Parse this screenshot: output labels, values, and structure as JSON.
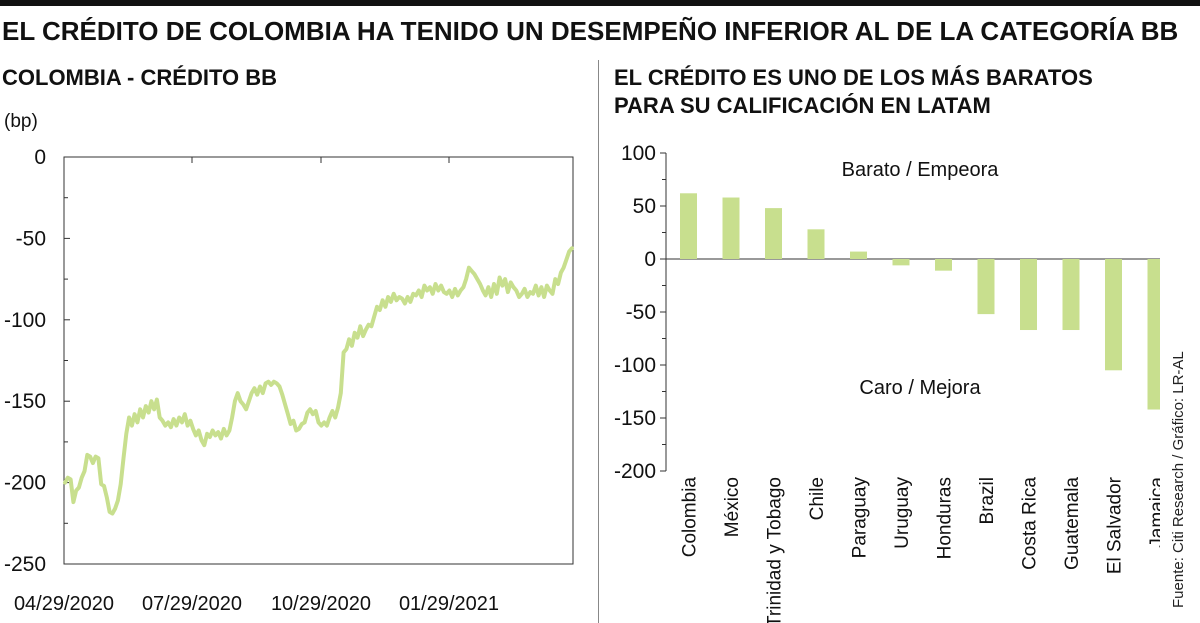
{
  "title": "EL CRÉDITO DE COLOMBIA HA TENIDO UN DESEMPEÑO INFERIOR AL DE LA CATEGORÍA BB",
  "source": "Fuente: Citi Research / Gráfico: LR-AL",
  "colors": {
    "series": "#c8df8e",
    "text": "#111111",
    "axis": "#333333"
  },
  "chart_data": [
    {
      "type": "line",
      "title": "COLOMBIA - CRÉDITO BB",
      "unit_label": "(bp)",
      "ylim": [
        -250,
        0
      ],
      "yticks": [
        0,
        -50,
        -100,
        -150,
        -200,
        -250
      ],
      "x_tick_labels": [
        "04/29/2020",
        "07/29/2020",
        "10/29/2020",
        "01/29/2021"
      ],
      "grid": false,
      "series": [
        {
          "values": [
            -200,
            -197,
            -198,
            -212,
            -205,
            -203,
            -197,
            -193,
            -183,
            -184,
            -188,
            -184,
            -185,
            -201,
            -202,
            -209,
            -218,
            -219,
            -216,
            -211,
            -201,
            -185,
            -170,
            -160,
            -165,
            -158,
            -163,
            -155,
            -160,
            -153,
            -157,
            -150,
            -155,
            -149,
            -160,
            -162,
            -165,
            -163,
            -166,
            -161,
            -165,
            -160,
            -163,
            -158,
            -165,
            -162,
            -167,
            -171,
            -168,
            -174,
            -177,
            -170,
            -172,
            -168,
            -171,
            -169,
            -173,
            -167,
            -171,
            -168,
            -160,
            -150,
            -145,
            -150,
            -152,
            -155,
            -150,
            -145,
            -142,
            -146,
            -141,
            -145,
            -139,
            -138,
            -140,
            -138,
            -139,
            -141,
            -146,
            -152,
            -158,
            -164,
            -162,
            -168,
            -167,
            -164,
            -163,
            -157,
            -155,
            -158,
            -156,
            -163,
            -165,
            -163,
            -165,
            -160,
            -156,
            -160,
            -154,
            -145,
            -120,
            -118,
            -112,
            -116,
            -108,
            -111,
            -104,
            -110,
            -106,
            -103,
            -104,
            -98,
            -92,
            -94,
            -88,
            -92,
            -86,
            -89,
            -84,
            -88,
            -86,
            -87,
            -90,
            -86,
            -89,
            -84,
            -85,
            -82,
            -86,
            -79,
            -82,
            -80,
            -84,
            -78,
            -82,
            -79,
            -83,
            -84,
            -82,
            -86,
            -81,
            -85,
            -82,
            -80,
            -75,
            -68,
            -70,
            -72,
            -75,
            -78,
            -82,
            -85,
            -80,
            -86,
            -78,
            -84,
            -74,
            -79,
            -75,
            -83,
            -77,
            -80,
            -82,
            -86,
            -84,
            -81,
            -86,
            -83,
            -84,
            -79,
            -85,
            -80,
            -86,
            -79,
            -82,
            -84,
            -75,
            -78,
            -71,
            -68,
            -63,
            -58,
            -56
          ]
        }
      ]
    },
    {
      "type": "bar",
      "title": "EL CRÉDITO ES UNO DE LOS MÁS BARATOS PARA SU CALIFICACIÓN EN LATAM",
      "title_lines": [
        "EL CRÉDITO ES UNO DE LOS MÁS BARATOS",
        "PARA SU CALIFICACIÓN EN LATAM"
      ],
      "ylim": [
        -200,
        100
      ],
      "yticks": [
        100,
        50,
        0,
        -50,
        -100,
        -150,
        -200
      ],
      "categories": [
        "Colombia",
        "México",
        "Trinidad y Tobago",
        "Chile",
        "Paraguay",
        "Uruguay",
        "Honduras",
        "Brazil",
        "Costa Rica",
        "Guatemala",
        "El Salvador",
        "Jamaica"
      ],
      "values": [
        62,
        58,
        48,
        28,
        7,
        -6,
        -11,
        -52,
        -67,
        -67,
        -105,
        -142
      ],
      "annotations": [
        "Barato / Empeora",
        "Caro / Mejora"
      ],
      "grid": false
    }
  ]
}
